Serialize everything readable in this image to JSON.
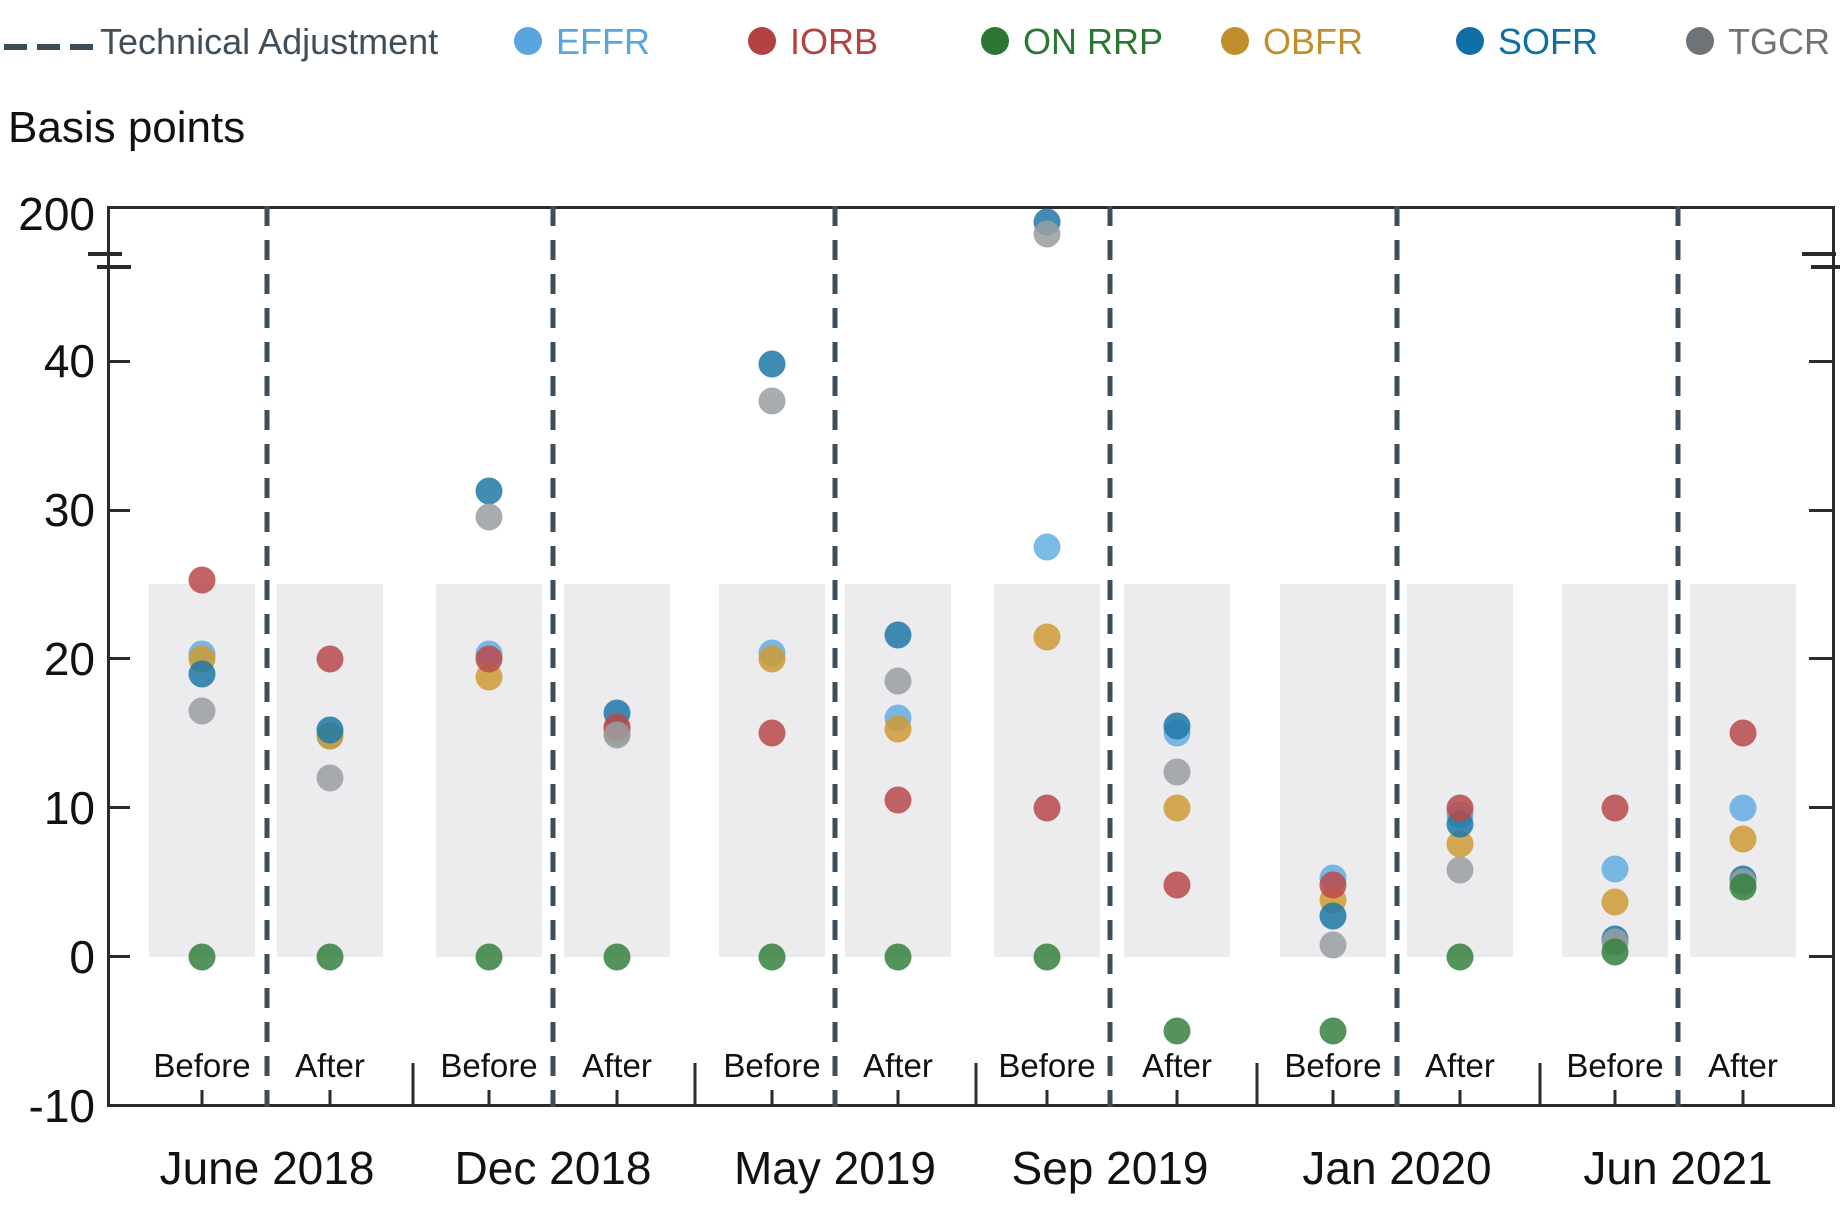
{
  "legend": {
    "technical_adjustment_label": "Technical Adjustment",
    "technical_adjustment_color": "#3f4e5a",
    "series": [
      {
        "name": "EFFR",
        "color": "#64aee0",
        "legend_color": "#58a6dd"
      },
      {
        "name": "IORB",
        "color": "#b94a4a",
        "legend_color": "#b2413f"
      },
      {
        "name": "ON RRP",
        "color": "#37803f",
        "legend_color": "#2c7634"
      },
      {
        "name": "OBFR",
        "color": "#cf9a35",
        "legend_color": "#c18e2e"
      },
      {
        "name": "SOFR",
        "color": "#1f78a6",
        "legend_color": "#0e6fa6"
      },
      {
        "name": "TGCR",
        "color": "#9a9da1",
        "legend_color": "#6e7378"
      }
    ]
  },
  "axis": {
    "title": "Basis points",
    "ticks": [
      200,
      40,
      30,
      20,
      10,
      0,
      -10
    ],
    "has_break": true
  },
  "chart_data": {
    "type": "scatter",
    "title": "",
    "ylabel": "Basis points",
    "y_ticks": [
      200,
      40,
      30,
      20,
      10,
      0,
      -10
    ],
    "ylim_lower_section": [
      -10,
      46
    ],
    "axis_break": {
      "between": [
        46,
        200
      ],
      "note": "y-axis broken; values above 46 bp drawn compressed just under the 200 line"
    },
    "shaded_band": {
      "min_bp": 0,
      "max_bp": 25,
      "color": "#ececee",
      "note": "light gray band behind each column spanning 0-25 basis points"
    },
    "draw_order": [
      "EFFR",
      "OBFR",
      "SOFR",
      "IORB",
      "TGCR",
      "ON RRP"
    ],
    "legend_order": [
      "EFFR",
      "IORB",
      "ON RRP",
      "OBFR",
      "SOFR",
      "TGCR"
    ],
    "dashed_line_meaning": "Technical Adjustment",
    "groups": [
      {
        "date": "June 2018",
        "columns": [
          {
            "label": "Before",
            "values": {
              "EFFR": 20.3,
              "IORB": 25.3,
              "ON RRP": 0,
              "OBFR": 20,
              "SOFR": 19,
              "TGCR": 16.5
            }
          },
          {
            "label": "After",
            "values": {
              "EFFR": 14.8,
              "IORB": 20,
              "ON RRP": 0,
              "OBFR": 14.8,
              "SOFR": 15.2,
              "TGCR": 12
            }
          }
        ]
      },
      {
        "date": "Dec 2018",
        "columns": [
          {
            "label": "Before",
            "values": {
              "EFFR": 20.3,
              "IORB": 20,
              "ON RRP": 0,
              "OBFR": 18.8,
              "SOFR": 31.3,
              "TGCR": 29.5
            }
          },
          {
            "label": "After",
            "values": {
              "EFFR": 15,
              "IORB": 15.4,
              "ON RRP": 0,
              "OBFR": 15.2,
              "SOFR": 16.4,
              "TGCR": 14.9
            }
          }
        ]
      },
      {
        "date": "May 2019",
        "columns": [
          {
            "label": "Before",
            "values": {
              "EFFR": 20.4,
              "IORB": 15,
              "ON RRP": 0,
              "OBFR": 20,
              "SOFR": 39.8,
              "TGCR": 37.3
            }
          },
          {
            "label": "After",
            "values": {
              "EFFR": 16,
              "IORB": 10.5,
              "ON RRP": 0,
              "OBFR": 15.3,
              "SOFR": 21.6,
              "TGCR": 18.5
            }
          }
        ]
      },
      {
        "date": "Sep 2019",
        "columns": [
          {
            "label": "Before",
            "values": {
              "EFFR": 27.5,
              "IORB": 10,
              "ON RRP": 0,
              "OBFR": 21.5,
              "SOFR": 196,
              "TGCR": 193
            }
          },
          {
            "label": "After",
            "values": {
              "EFFR": 15,
              "IORB": 4.8,
              "ON RRP": -5,
              "OBFR": 10,
              "SOFR": 15.5,
              "TGCR": 12.4
            }
          }
        ]
      },
      {
        "date": "Jan 2020",
        "columns": [
          {
            "label": "Before",
            "values": {
              "EFFR": 5.3,
              "IORB": 4.8,
              "ON RRP": -5,
              "OBFR": 3.8,
              "SOFR": 2.7,
              "TGCR": 0.8
            }
          },
          {
            "label": "After",
            "values": {
              "EFFR": 9.5,
              "IORB": 10,
              "ON RRP": 0,
              "OBFR": 7.6,
              "SOFR": 8.9,
              "TGCR": 5.8
            }
          }
        ]
      },
      {
        "date": "Jun 2021",
        "columns": [
          {
            "label": "Before",
            "values": {
              "EFFR": 5.9,
              "IORB": 10,
              "ON RRP": 0.3,
              "OBFR": 3.7,
              "SOFR": 1.2,
              "TGCR": 1.0
            }
          },
          {
            "label": "After",
            "values": {
              "EFFR": 10,
              "IORB": 15,
              "ON RRP": 4.7,
              "OBFR": 7.9,
              "SOFR": 5.2,
              "TGCR": 5.0
            }
          }
        ]
      }
    ]
  }
}
